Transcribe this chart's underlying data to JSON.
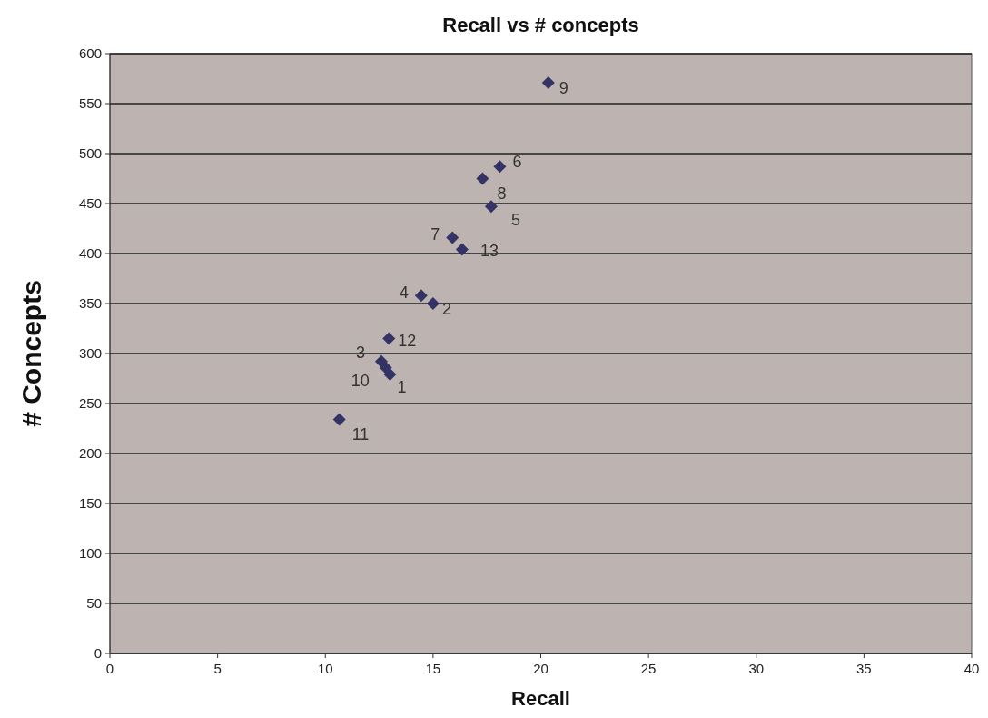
{
  "chart_data": {
    "type": "scatter",
    "title": "Recall vs # concepts",
    "xlabel": "Recall",
    "ylabel": "# Concepts",
    "x": [
      13.0,
      15.0,
      12.6,
      14.45,
      17.7,
      18.1,
      15.9,
      17.3,
      20.35,
      12.8,
      10.65,
      12.95,
      16.35
    ],
    "series": [
      {
        "color": "#333366",
        "values": [
          279,
          350,
          292,
          358,
          447,
          487,
          416,
          475,
          571,
          286,
          234,
          315,
          404
        ]
      }
    ],
    "xlim": [
      0,
      40
    ],
    "xticks": [
      0,
      5,
      10,
      15,
      20,
      25,
      30,
      35,
      40
    ],
    "ylim": [
      0,
      600
    ],
    "yticks": [
      0,
      50,
      100,
      150,
      200,
      250,
      300,
      350,
      400,
      450,
      500,
      550,
      600
    ],
    "grid": "y",
    "marker": "diamond",
    "annotations": [
      {
        "text": "1",
        "x": 13.0,
        "y": 279
      },
      {
        "text": "2",
        "x": 15.0,
        "y": 350
      },
      {
        "text": "3",
        "x": 12.6,
        "y": 292
      },
      {
        "text": "4",
        "x": 14.45,
        "y": 358
      },
      {
        "text": "5",
        "x": 17.7,
        "y": 447
      },
      {
        "text": "6",
        "x": 18.1,
        "y": 487
      },
      {
        "text": "7",
        "x": 15.9,
        "y": 416
      },
      {
        "text": "8",
        "x": 17.3,
        "y": 475
      },
      {
        "text": "9",
        "x": 20.35,
        "y": 571
      },
      {
        "text": "10",
        "x": 12.8,
        "y": 286
      },
      {
        "text": "11",
        "x": 10.65,
        "y": 234
      },
      {
        "text": "12",
        "x": 12.95,
        "y": 315
      },
      {
        "text": "13",
        "x": 16.35,
        "y": 404
      }
    ]
  }
}
